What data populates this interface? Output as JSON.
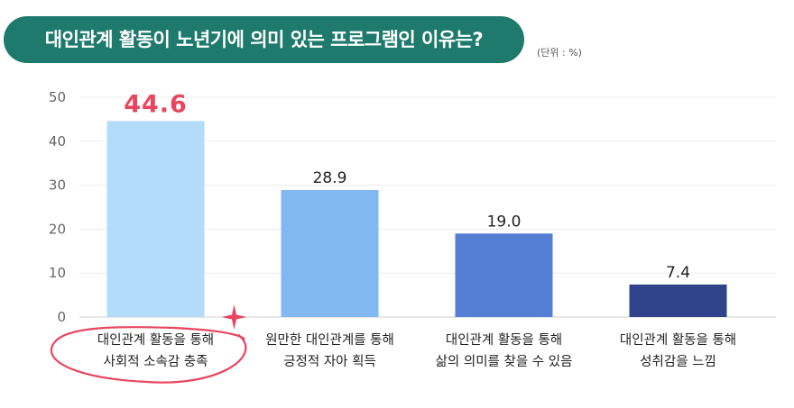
{
  "title": "대인관계 활동이 노년기에 의미 있는 프로그램인 이유는?",
  "unit": "(단위 : %)",
  "chart_data": {
    "type": "bar",
    "categories": [
      [
        "대인관계 활동을 통해",
        "사회적 소속감 충족"
      ],
      [
        "원만한 대인관계를 통해",
        "긍정적 자아 획득"
      ],
      [
        "대인관계 활동을 통해",
        "삶의 의미를 찾을 수 있음"
      ],
      [
        "대인관계 활동을 통해",
        "성취감을 느낌"
      ]
    ],
    "values": [
      44.6,
      28.9,
      19.0,
      7.4
    ],
    "value_labels": [
      "44.6",
      "28.9",
      "19.0",
      "7.4"
    ],
    "colors": [
      "#b3dcfb",
      "#82b8f2",
      "#547fd4",
      "#2e4389"
    ],
    "highlight_index": 0,
    "highlight_color": "#e8455e",
    "ylim": [
      0,
      50
    ],
    "yticks": [
      0,
      10,
      20,
      30,
      40,
      50
    ],
    "grid": true
  }
}
